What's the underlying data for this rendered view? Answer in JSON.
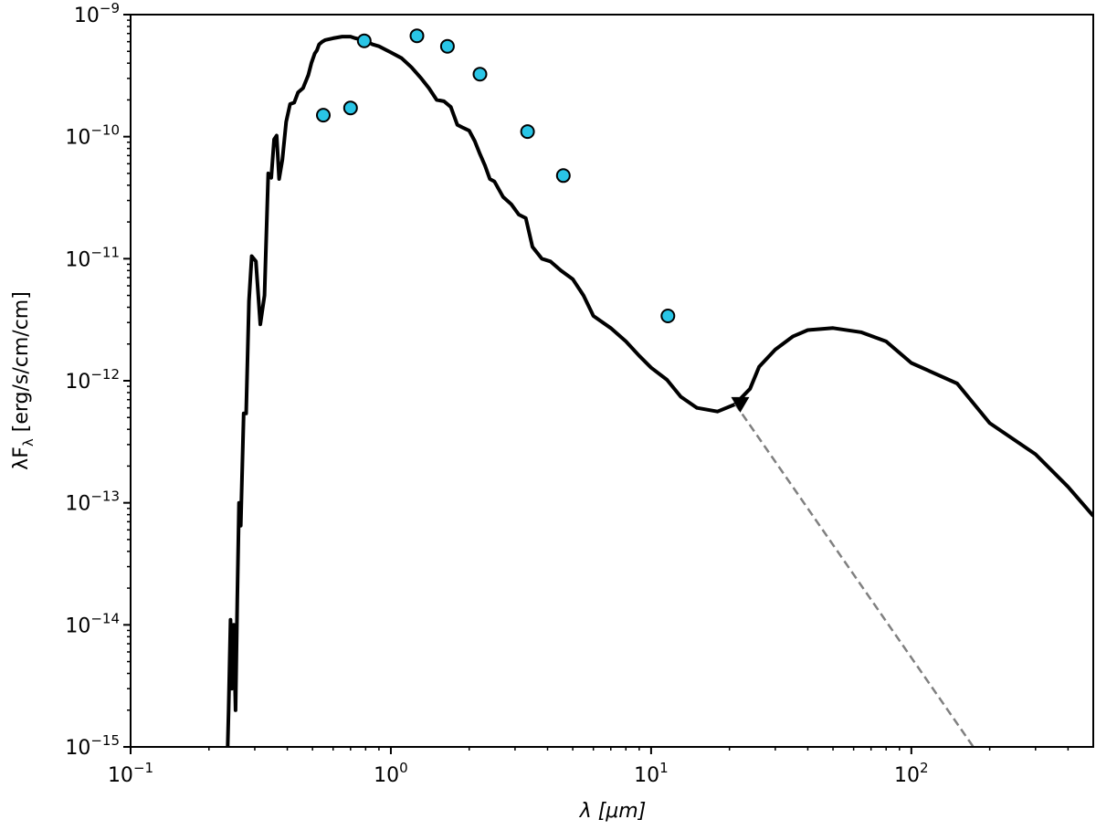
{
  "chart_data": {
    "type": "line",
    "title": "",
    "xlabel": "λ [μm]",
    "ylabel": "λF_λ [erg/s/cm/cm]",
    "x_scale": "log",
    "y_scale": "log",
    "xlim": [
      0.1,
      500
    ],
    "ylim": [
      1e-15,
      1e-09
    ],
    "grid": false,
    "legend": "none",
    "x_ticks": [
      {
        "value": 0.1,
        "base": "10",
        "exp": "−1"
      },
      {
        "value": 1,
        "base": "10",
        "exp": "0"
      },
      {
        "value": 10,
        "base": "10",
        "exp": "1"
      },
      {
        "value": 100,
        "base": "10",
        "exp": "2"
      }
    ],
    "y_ticks": [
      {
        "value": 1e-15,
        "base": "10",
        "exp": "−15"
      },
      {
        "value": 1e-14,
        "base": "10",
        "exp": "−14"
      },
      {
        "value": 1e-13,
        "base": "10",
        "exp": "−13"
      },
      {
        "value": 1e-12,
        "base": "10",
        "exp": "−12"
      },
      {
        "value": 1e-11,
        "base": "10",
        "exp": "−11"
      },
      {
        "value": 1e-10,
        "base": "10",
        "exp": "−10"
      },
      {
        "value": 1e-09,
        "base": "10",
        "exp": "−9"
      }
    ],
    "series": [
      {
        "style": "solid",
        "color": "#000000",
        "x": [
          0.236,
          0.238,
          0.242,
          0.245,
          0.249,
          0.253,
          0.257,
          0.261,
          0.265,
          0.272,
          0.278,
          0.285,
          0.292,
          0.303,
          0.315,
          0.327,
          0.338,
          0.347,
          0.356,
          0.364,
          0.372,
          0.383,
          0.396,
          0.41,
          0.425,
          0.44,
          0.46,
          0.482,
          0.495,
          0.51,
          0.52,
          0.53,
          0.545,
          0.56,
          0.6,
          0.65,
          0.7,
          0.73,
          0.76,
          0.8,
          0.85,
          0.9,
          1.0,
          1.1,
          1.2,
          1.3,
          1.4,
          1.5,
          1.6,
          1.7,
          1.8,
          1.9,
          2.0,
          2.1,
          2.2,
          2.3,
          2.4,
          2.5,
          2.7,
          2.9,
          3.1,
          3.3,
          3.5,
          3.8,
          4.1,
          4.5,
          5.0,
          5.5,
          6.0,
          7.0,
          8.0,
          9.0,
          10.0,
          11.5,
          13.0,
          15.0,
          18.0,
          21.0,
          24.0,
          26.0,
          30.0,
          35.0,
          40.0,
          50.0,
          64.0,
          80.0,
          100.0,
          150.0,
          200.0,
          300.0,
          400.0,
          500.0
        ],
        "y": [
          1e-15,
          2e-15,
          1.1e-14,
          3e-15,
          1e-14,
          2e-15,
          1.6e-14,
          1e-13,
          6.5e-14,
          5.4e-13,
          5.4e-13,
          4.5e-12,
          1.05e-11,
          9.5e-12,
          2.9e-12,
          5e-12,
          5e-11,
          4.6e-11,
          9.5e-11,
          1.02e-10,
          4.5e-11,
          6.5e-11,
          1.32e-10,
          1.85e-10,
          1.9e-10,
          2.3e-10,
          2.5e-10,
          3.2e-10,
          4e-10,
          4.8e-10,
          5.1e-10,
          5.7e-10,
          6e-10,
          6.2e-10,
          6.4e-10,
          6.6e-10,
          6.6e-10,
          6.4e-10,
          6.3e-10,
          6.1e-10,
          5.7e-10,
          5.5e-10,
          4.9e-10,
          4.4e-10,
          3.7e-10,
          3.05e-10,
          2.5e-10,
          2e-10,
          1.95e-10,
          1.75e-10,
          1.25e-10,
          1.18e-10,
          1.12e-10,
          9.2e-11,
          7.2e-11,
          5.8e-11,
          4.5e-11,
          4.3e-11,
          3.2e-11,
          2.8e-11,
          2.3e-11,
          2.15e-11,
          1.25e-11,
          1e-11,
          9.5e-12,
          8e-12,
          6.8e-12,
          5e-12,
          3.4e-12,
          2.7e-12,
          2.1e-12,
          1.6e-12,
          1.28e-12,
          1.02e-12,
          7.4e-13,
          6e-13,
          5.6e-13,
          6.4e-13,
          8.6e-13,
          1.3e-12,
          1.8e-12,
          2.3e-12,
          2.6e-12,
          2.7e-12,
          2.5e-12,
          2.1e-12,
          1.4e-12,
          9.5e-13,
          4.5e-13,
          2.5e-13,
          1.35e-13,
          7.8e-14
        ],
        "__unused": null
      },
      {
        "style": "dashed",
        "color": "#808080",
        "x": [
          21.0,
          173.0
        ],
        "y": [
          6.5e-13,
          1e-15
        ]
      }
    ],
    "points": {
      "color": "#29c5e6",
      "edge": "#000000",
      "x": [
        0.55,
        0.7,
        0.79,
        1.26,
        1.65,
        2.2,
        3.35,
        4.6,
        11.6
      ],
      "y": [
        1.5e-10,
        1.72e-10,
        6.1e-10,
        6.7e-10,
        5.5e-10,
        3.25e-10,
        1.1e-10,
        4.8e-11,
        3.4e-12
      ]
    },
    "upper_limits": {
      "color": "#000000",
      "marker": "triangle-down",
      "x": [
        22.0
      ],
      "y": [
        6.4e-13
      ]
    }
  }
}
